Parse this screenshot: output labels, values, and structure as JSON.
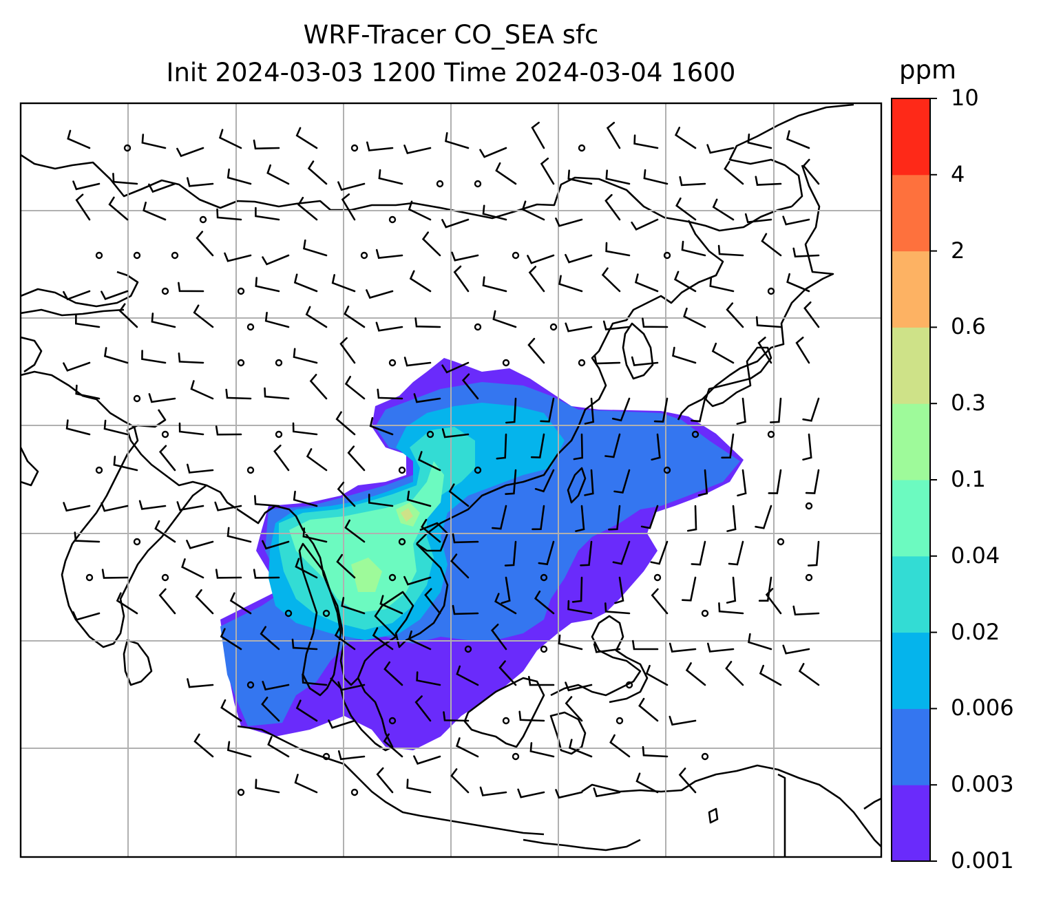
{
  "title_line1": "WRF-Tracer CO_SEA sfc",
  "title_line2": "Init 2024-03-03 1200 Time 2024-03-04 1600",
  "colorbar": {
    "unit": "ppm",
    "levels": [
      "0.001",
      "0.003",
      "0.006",
      "0.02",
      "0.04",
      "0.1",
      "0.3",
      "0.6",
      "2",
      "4",
      "10"
    ],
    "colors": [
      "#6a2bfb",
      "#3476f0",
      "#05b4ec",
      "#33dcd4",
      "#6cfac0",
      "#9efa9a",
      "#cee288",
      "#fdb263",
      "#fe713d",
      "#fe2918"
    ]
  },
  "map": {
    "projection": "plate carree",
    "region": "South and Southeast Asia / East Asia",
    "gridlines": true,
    "field": "CO_SEA tracer concentration",
    "overlay": "wind barbs"
  }
}
